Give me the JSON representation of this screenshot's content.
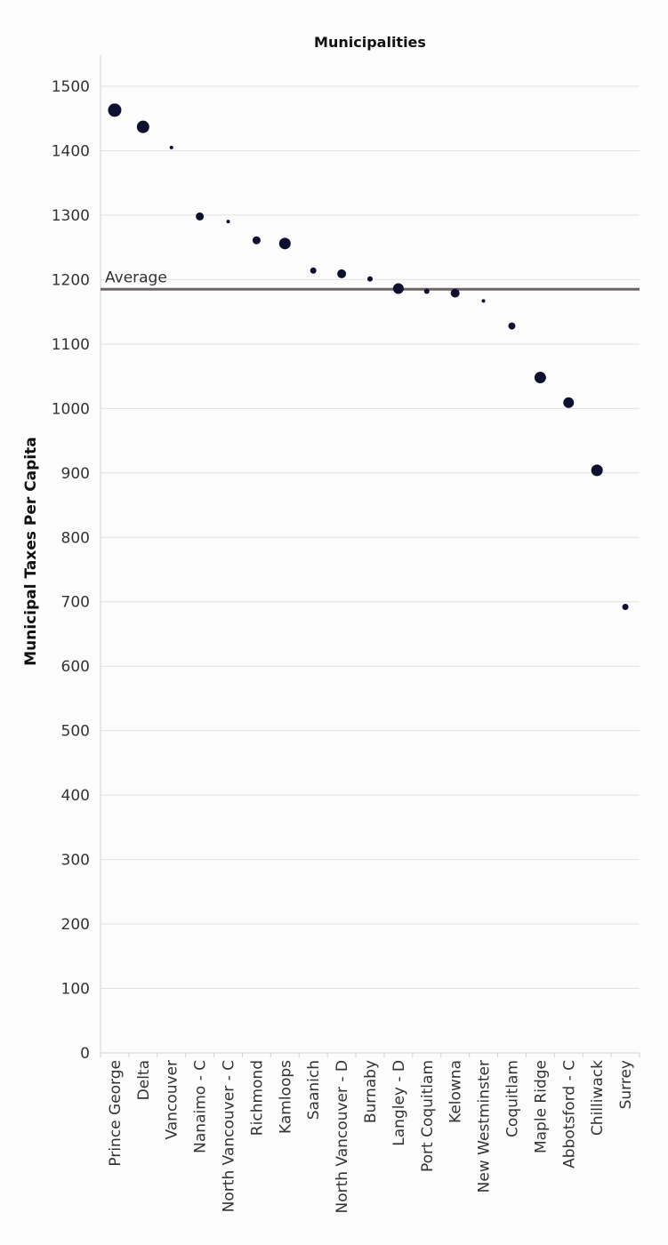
{
  "chart_data": {
    "type": "scatter",
    "title": "Municipalities",
    "ylabel": "Municipal Taxes Per Capita",
    "xlabel": "",
    "ylim": [
      0,
      1550
    ],
    "yticks": [
      0,
      100,
      200,
      300,
      400,
      500,
      600,
      700,
      800,
      900,
      1000,
      1100,
      1200,
      1300,
      1400,
      1500
    ],
    "grid": true,
    "colors": {
      "point": "#0f1030",
      "reference_line": "#6e6565",
      "grid": "#e2e2e2"
    },
    "reference_line": {
      "label": "Average",
      "value": 1185
    },
    "categories": [
      "Prince George",
      "Delta",
      "Vancouver",
      "Nanaimo - C",
      "North Vancouver - C",
      "Richmond",
      "Kamloops",
      "Saanich",
      "North Vancouver - D",
      "Burnaby",
      "Langley - D",
      "Port Coquitlam",
      "Kelowna",
      "New Westminster",
      "Coquitlam",
      "Maple Ridge",
      "Abbotsford - C",
      "Chilliwack",
      "Surrey"
    ],
    "values": [
      1463,
      1437,
      1405,
      1298,
      1290,
      1261,
      1256,
      1214,
      1209,
      1201,
      1186,
      1182,
      1179,
      1167,
      1128,
      1048,
      1009,
      904,
      692
    ],
    "point_sizes": [
      7.5,
      7,
      2,
      4.5,
      2,
      4.5,
      6.5,
      3.5,
      5,
      3,
      6,
      3,
      5,
      2,
      4,
      6.5,
      6,
      6.5,
      3.5
    ]
  }
}
